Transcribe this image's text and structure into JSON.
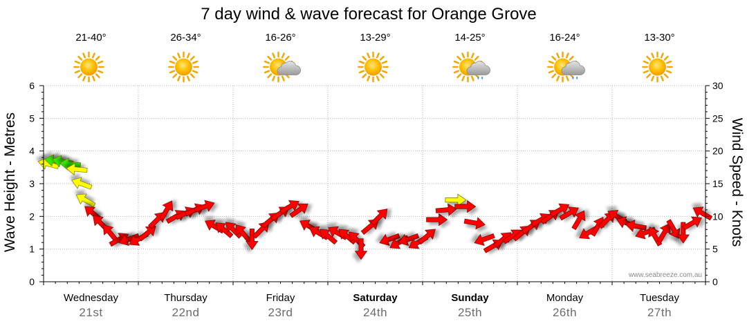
{
  "chart_data": {
    "type": "line",
    "title": "7 day wind & wave forecast for Orange Grove",
    "ylabel_left": "Wave Height - Metres",
    "ylabel_right": "Wind Speed - Knots",
    "ylim_left": [
      0,
      6
    ],
    "ylim_right": [
      0,
      30
    ],
    "yticks_left": [
      "0",
      "1",
      "2",
      "3",
      "4",
      "5",
      "6"
    ],
    "yticks_right": [
      "0",
      "5",
      "10",
      "15",
      "20",
      "25",
      "30"
    ],
    "grid": true,
    "credit": "www.seabreeze.com.au",
    "days": [
      {
        "name": "Wednesday",
        "date": "21st",
        "temp": "21-40°",
        "weather": "sunny",
        "bold": false
      },
      {
        "name": "Thursday",
        "date": "22nd",
        "temp": "26-34°",
        "weather": "sunny",
        "bold": false
      },
      {
        "name": "Friday",
        "date": "23rd",
        "temp": "16-26°",
        "weather": "sun-cloud",
        "bold": false
      },
      {
        "name": "Saturday",
        "date": "24th",
        "temp": "13-29°",
        "weather": "sunny",
        "bold": true
      },
      {
        "name": "Sunday",
        "date": "25th",
        "temp": "14-25°",
        "weather": "sun-cloud-rain",
        "bold": true
      },
      {
        "name": "Monday",
        "date": "26th",
        "temp": "16-24°",
        "weather": "sun-cloud-rain",
        "bold": false
      },
      {
        "name": "Tuesday",
        "date": "27th",
        "temp": "13-30°",
        "weather": "sunny",
        "bold": false
      }
    ],
    "series": [
      {
        "name": "Wind Speed",
        "note": "wind arrows: x = day index (0-7), y = wind speed in knots, dir = direction arrow points (deg, 0 = right, 90 = up), color = strength band",
        "points": [
          {
            "x": 0.05,
            "y": 18.0,
            "dir": 165,
            "color": "#ffff00"
          },
          {
            "x": 0.12,
            "y": 18.5,
            "dir": 170,
            "color": "#33ee00"
          },
          {
            "x": 0.2,
            "y": 18.4,
            "dir": 170,
            "color": "#33ee00"
          },
          {
            "x": 0.28,
            "y": 18.0,
            "dir": 175,
            "color": "#33ee00"
          },
          {
            "x": 0.35,
            "y": 17.2,
            "dir": 175,
            "color": "#ffff00"
          },
          {
            "x": 0.4,
            "y": 15.0,
            "dir": 160,
            "color": "#ffff00"
          },
          {
            "x": 0.44,
            "y": 12.5,
            "dir": 150,
            "color": "#ffff00"
          },
          {
            "x": 0.52,
            "y": 10.5,
            "dir": 140,
            "color": "#ff0000"
          },
          {
            "x": 0.6,
            "y": 9.0,
            "dir": 135,
            "color": "#ff0000"
          },
          {
            "x": 0.7,
            "y": 7.5,
            "dir": 130,
            "color": "#ff0000"
          },
          {
            "x": 0.8,
            "y": 6.5,
            "dir": 30,
            "color": "#ff0000"
          },
          {
            "x": 0.9,
            "y": 6.5,
            "dir": 200,
            "color": "#ff0000"
          },
          {
            "x": 1.0,
            "y": 6.5,
            "dir": 210,
            "color": "#ff0000"
          },
          {
            "x": 1.1,
            "y": 7.5,
            "dir": 40,
            "color": "#ff0000"
          },
          {
            "x": 1.2,
            "y": 9.5,
            "dir": 45,
            "color": "#ff0000"
          },
          {
            "x": 1.3,
            "y": 11.0,
            "dir": 60,
            "color": "#ff0000"
          },
          {
            "x": 1.4,
            "y": 10.0,
            "dir": 30,
            "color": "#ff0000"
          },
          {
            "x": 1.5,
            "y": 10.5,
            "dir": 25,
            "color": "#ff0000"
          },
          {
            "x": 1.6,
            "y": 11.0,
            "dir": 25,
            "color": "#ff0000"
          },
          {
            "x": 1.7,
            "y": 11.5,
            "dir": 20,
            "color": "#ff0000"
          },
          {
            "x": 1.8,
            "y": 8.5,
            "dir": 150,
            "color": "#ff0000"
          },
          {
            "x": 1.9,
            "y": 8.0,
            "dir": 140,
            "color": "#ff0000"
          },
          {
            "x": 2.0,
            "y": 8.0,
            "dir": 135,
            "color": "#ff0000"
          },
          {
            "x": 2.1,
            "y": 7.5,
            "dir": 130,
            "color": "#ff0000"
          },
          {
            "x": 2.2,
            "y": 6.5,
            "dir": 270,
            "color": "#ff0000"
          },
          {
            "x": 2.3,
            "y": 8.0,
            "dir": 45,
            "color": "#ff0000"
          },
          {
            "x": 2.4,
            "y": 9.5,
            "dir": 40,
            "color": "#ff0000"
          },
          {
            "x": 2.5,
            "y": 10.5,
            "dir": 35,
            "color": "#ff0000"
          },
          {
            "x": 2.6,
            "y": 11.5,
            "dir": 30,
            "color": "#ff0000"
          },
          {
            "x": 2.7,
            "y": 11.0,
            "dir": 35,
            "color": "#ff0000"
          },
          {
            "x": 2.8,
            "y": 8.5,
            "dir": 150,
            "color": "#ff0000"
          },
          {
            "x": 2.9,
            "y": 7.5,
            "dir": 150,
            "color": "#ff0000"
          },
          {
            "x": 3.0,
            "y": 7.0,
            "dir": 140,
            "color": "#ff0000"
          },
          {
            "x": 3.1,
            "y": 7.5,
            "dir": 150,
            "color": "#ff0000"
          },
          {
            "x": 3.2,
            "y": 7.0,
            "dir": 140,
            "color": "#ff0000"
          },
          {
            "x": 3.3,
            "y": 6.5,
            "dir": 135,
            "color": "#ff0000"
          },
          {
            "x": 3.35,
            "y": 5.0,
            "dir": 270,
            "color": "#ff0000"
          },
          {
            "x": 3.45,
            "y": 8.5,
            "dir": 40,
            "color": "#ff0000"
          },
          {
            "x": 3.55,
            "y": 10.0,
            "dir": 45,
            "color": "#ff0000"
          },
          {
            "x": 3.65,
            "y": 6.5,
            "dir": 200,
            "color": "#ff0000"
          },
          {
            "x": 3.75,
            "y": 6.0,
            "dir": 210,
            "color": "#ff0000"
          },
          {
            "x": 3.85,
            "y": 6.5,
            "dir": 200,
            "color": "#ff0000"
          },
          {
            "x": 3.95,
            "y": 6.0,
            "dir": 210,
            "color": "#ff0000"
          },
          {
            "x": 4.05,
            "y": 7.0,
            "dir": 40,
            "color": "#ff0000"
          },
          {
            "x": 4.15,
            "y": 9.5,
            "dir": 0,
            "color": "#ff0000"
          },
          {
            "x": 4.25,
            "y": 11.0,
            "dir": 5,
            "color": "#ff0000"
          },
          {
            "x": 4.35,
            "y": 12.5,
            "dir": 0,
            "color": "#ffff00"
          },
          {
            "x": 4.45,
            "y": 11.5,
            "dir": 0,
            "color": "#ff0000"
          },
          {
            "x": 4.55,
            "y": 9.0,
            "dir": 350,
            "color": "#ff0000"
          },
          {
            "x": 4.65,
            "y": 6.5,
            "dir": 200,
            "color": "#ff0000"
          },
          {
            "x": 4.75,
            "y": 5.5,
            "dir": 30,
            "color": "#ff0000"
          },
          {
            "x": 4.85,
            "y": 6.5,
            "dir": 40,
            "color": "#ff0000"
          },
          {
            "x": 4.95,
            "y": 7.0,
            "dir": 35,
            "color": "#ff0000"
          },
          {
            "x": 5.05,
            "y": 7.5,
            "dir": 40,
            "color": "#ff0000"
          },
          {
            "x": 5.15,
            "y": 8.5,
            "dir": 35,
            "color": "#ff0000"
          },
          {
            "x": 5.25,
            "y": 9.5,
            "dir": 30,
            "color": "#ff0000"
          },
          {
            "x": 5.35,
            "y": 10.0,
            "dir": 35,
            "color": "#ff0000"
          },
          {
            "x": 5.45,
            "y": 11.0,
            "dir": 30,
            "color": "#ff0000"
          },
          {
            "x": 5.55,
            "y": 10.5,
            "dir": 30,
            "color": "#ff0000"
          },
          {
            "x": 5.65,
            "y": 9.5,
            "dir": 60,
            "color": "#ff0000"
          },
          {
            "x": 5.75,
            "y": 7.5,
            "dir": 210,
            "color": "#ff0000"
          },
          {
            "x": 5.85,
            "y": 8.5,
            "dir": 60,
            "color": "#ff0000"
          },
          {
            "x": 5.95,
            "y": 9.5,
            "dir": 45,
            "color": "#ff0000"
          },
          {
            "x": 6.05,
            "y": 10.0,
            "dir": 150,
            "color": "#ff0000"
          },
          {
            "x": 6.15,
            "y": 9.0,
            "dir": 160,
            "color": "#ff0000"
          },
          {
            "x": 6.25,
            "y": 8.5,
            "dir": 170,
            "color": "#ff0000"
          },
          {
            "x": 6.35,
            "y": 7.5,
            "dir": 200,
            "color": "#ff0000"
          },
          {
            "x": 6.45,
            "y": 7.0,
            "dir": 120,
            "color": "#ff0000"
          },
          {
            "x": 6.55,
            "y": 7.5,
            "dir": 60,
            "color": "#ff0000"
          },
          {
            "x": 6.65,
            "y": 8.0,
            "dir": 300,
            "color": "#ff0000"
          },
          {
            "x": 6.75,
            "y": 7.5,
            "dir": 270,
            "color": "#ff0000"
          },
          {
            "x": 6.85,
            "y": 9.0,
            "dir": 30,
            "color": "#ff0000"
          },
          {
            "x": 6.95,
            "y": 10.5,
            "dir": 150,
            "color": "#ff0000"
          }
        ]
      }
    ]
  }
}
